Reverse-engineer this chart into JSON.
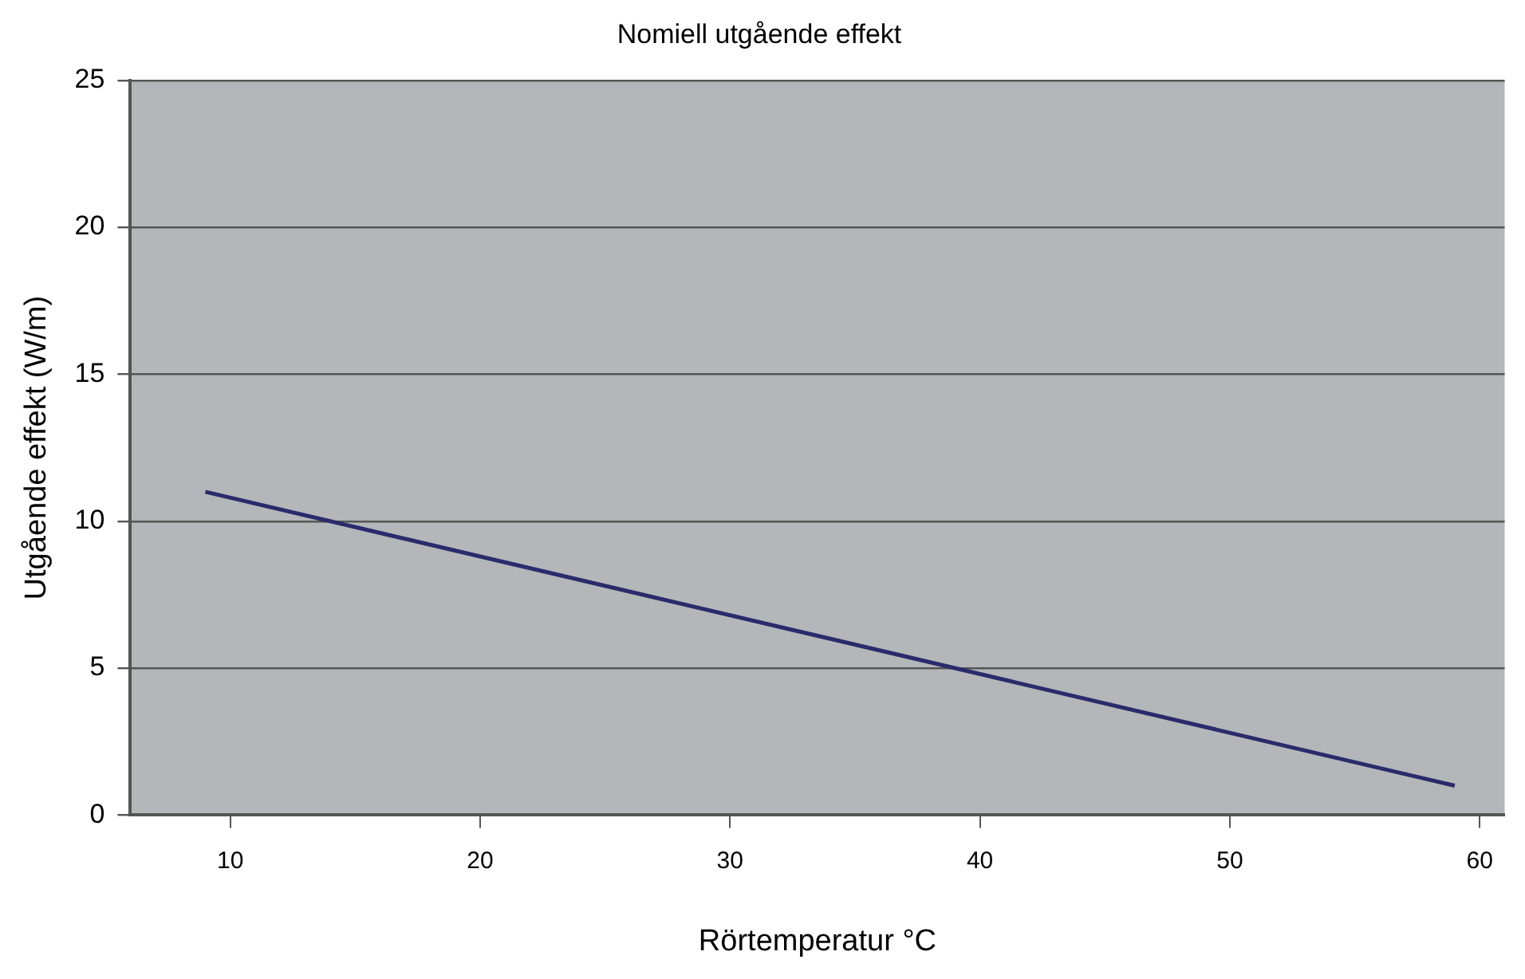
{
  "chart_data": {
    "type": "line",
    "title": "Nomiell utgående effekt",
    "xlabel": "Rörtemperatur °C",
    "ylabel": "Utgående effekt (W/m)",
    "x": [
      9,
      59
    ],
    "series": [
      {
        "color": "#2b2a6b",
        "values": [
          11,
          1
        ]
      }
    ],
    "xlim": [
      6,
      61
    ],
    "xticks": [
      10,
      20,
      30,
      40,
      50,
      60
    ],
    "ylim": [
      0,
      25
    ],
    "yticks": [
      0,
      5,
      10,
      15,
      20,
      25
    ],
    "grid": "y",
    "legend": false,
    "marker": "none",
    "line_style": "solid"
  }
}
